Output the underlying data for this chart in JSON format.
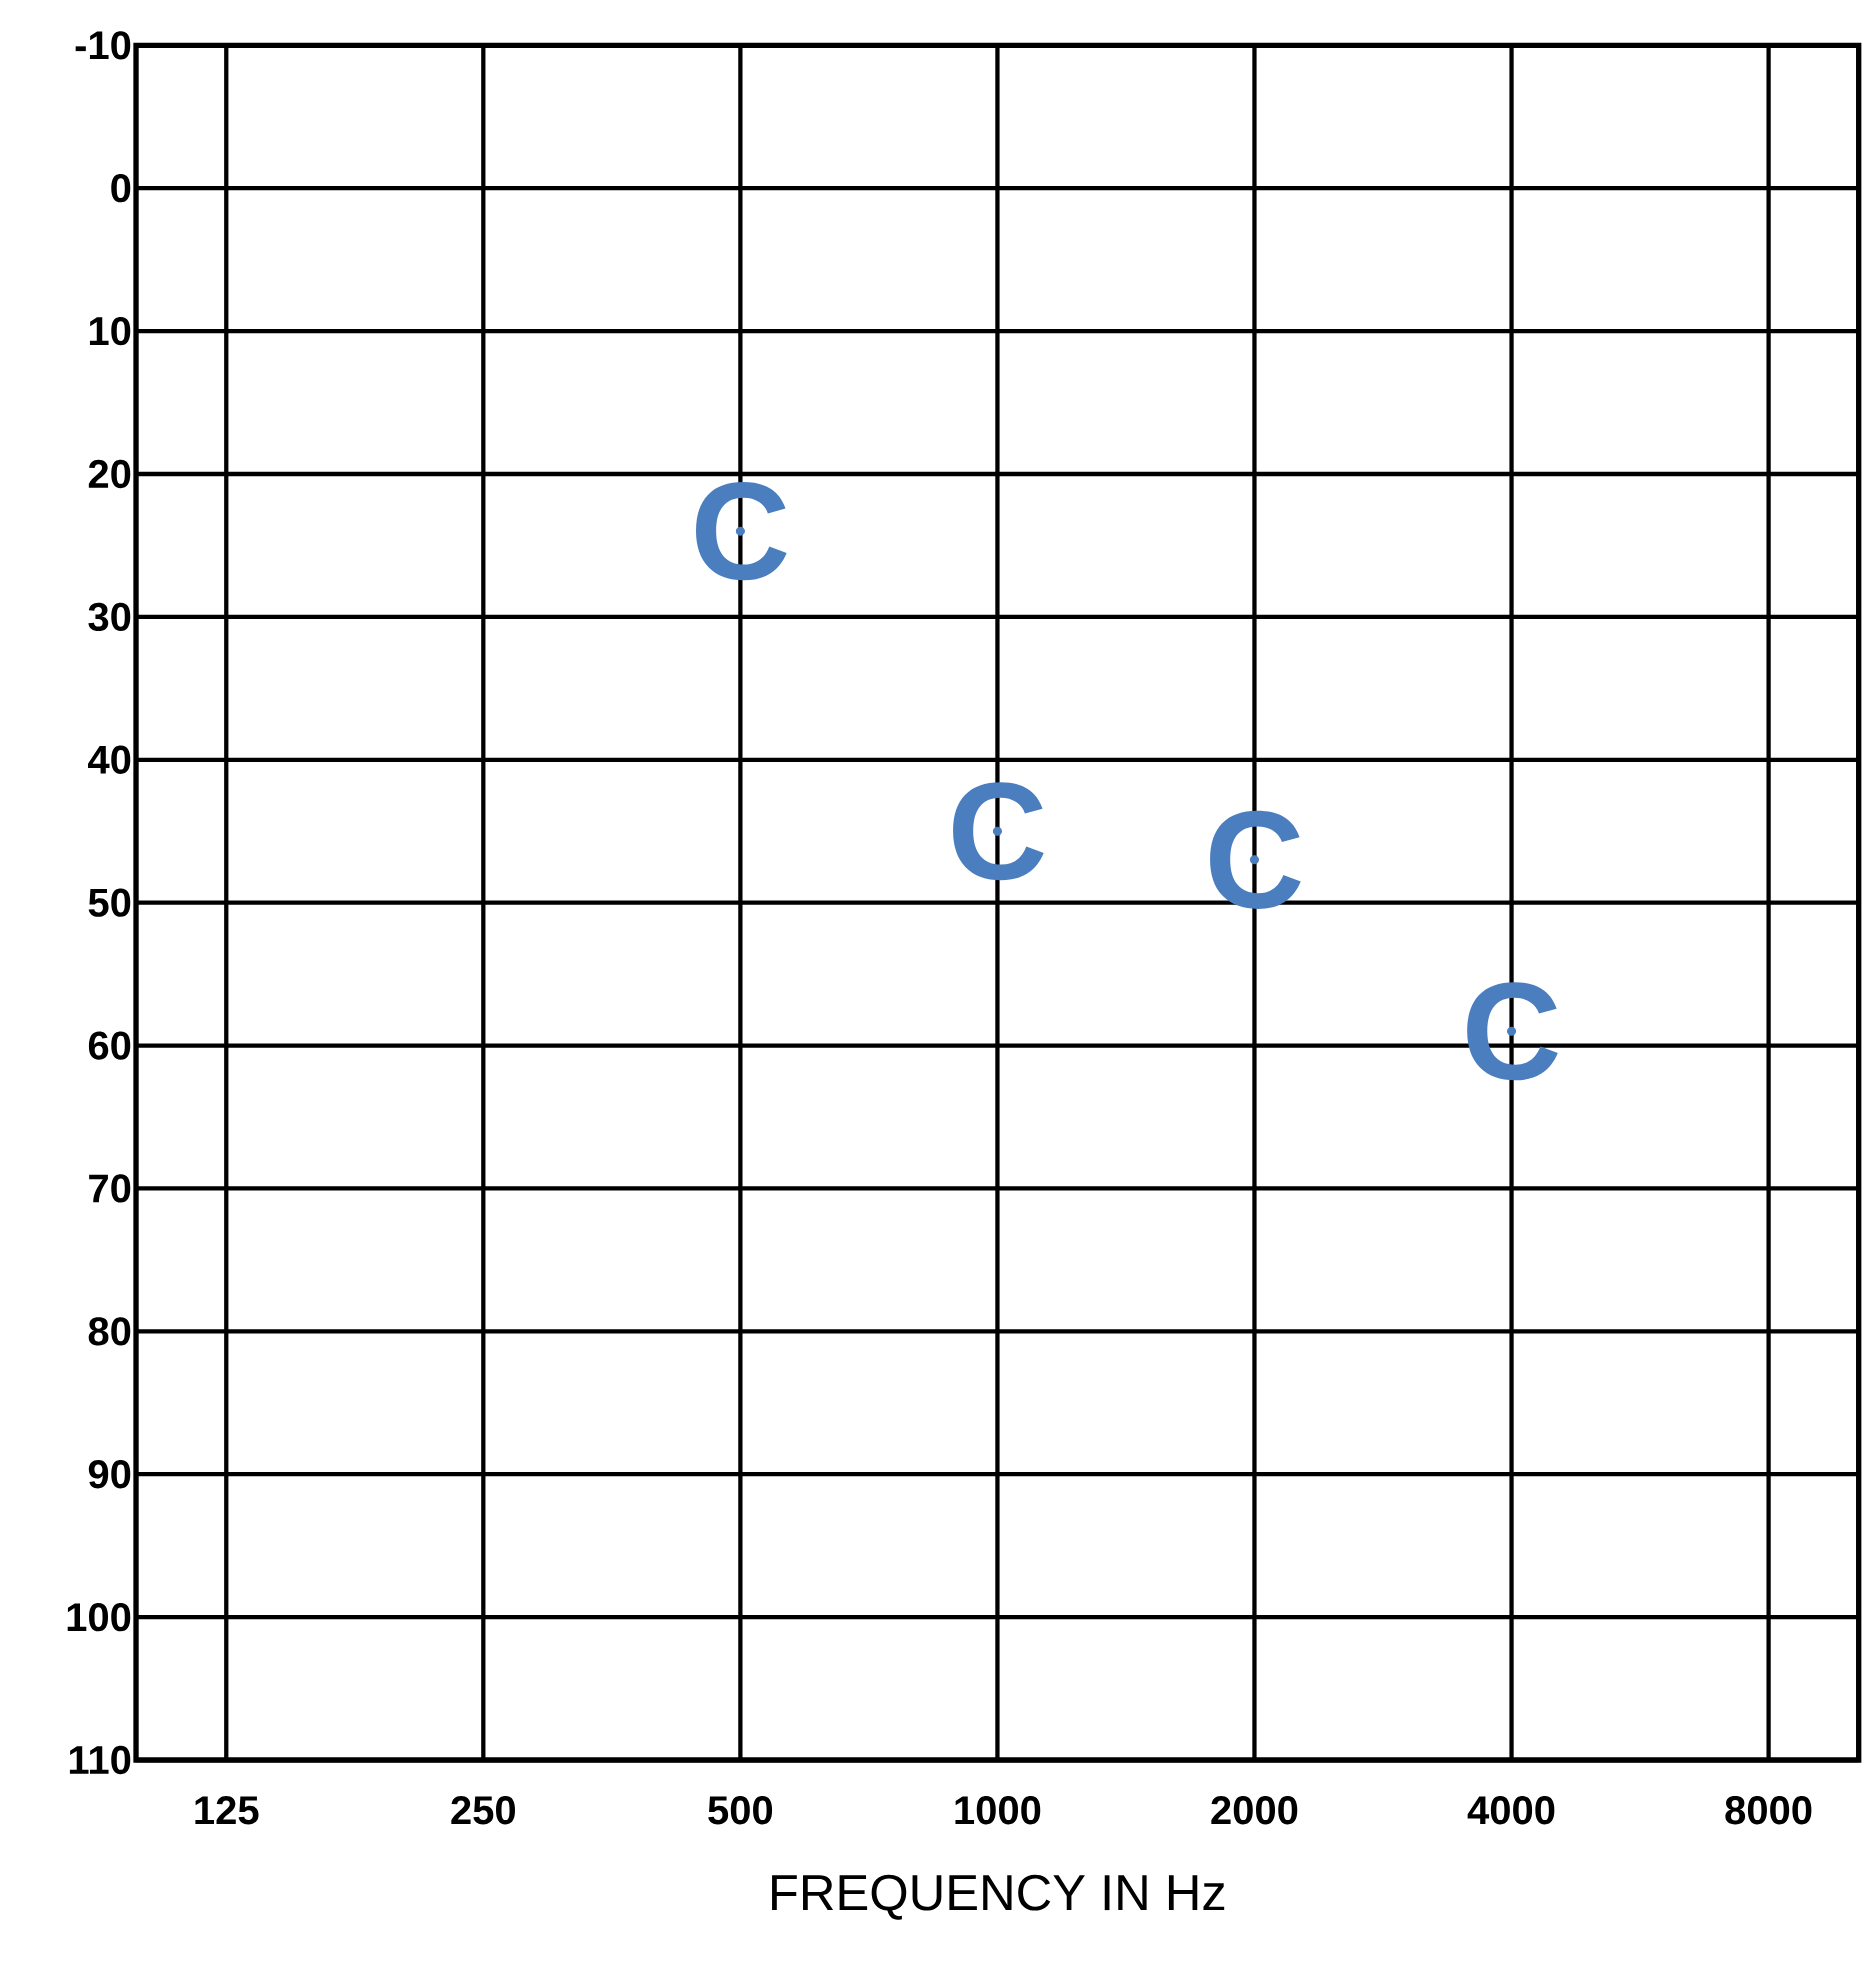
{
  "chart_data": {
    "type": "scatter",
    "xlabel": "FREQUENCY IN Hz",
    "log": "x",
    "grid": true,
    "xlim": [
      98,
      10200
    ],
    "xticks": [
      125,
      250,
      500,
      1000,
      2000,
      4000,
      8000
    ],
    "ylim": [
      110,
      -10
    ],
    "yticks": [
      -10,
      0,
      10,
      20,
      30,
      40,
      50,
      60,
      70,
      80,
      90,
      100,
      110
    ],
    "x": [
      500,
      1000,
      2000,
      4000
    ],
    "series": [
      {
        "name": "C",
        "color": "#4a7ebf",
        "values": [
          24,
          45,
          47,
          59
        ]
      }
    ]
  }
}
